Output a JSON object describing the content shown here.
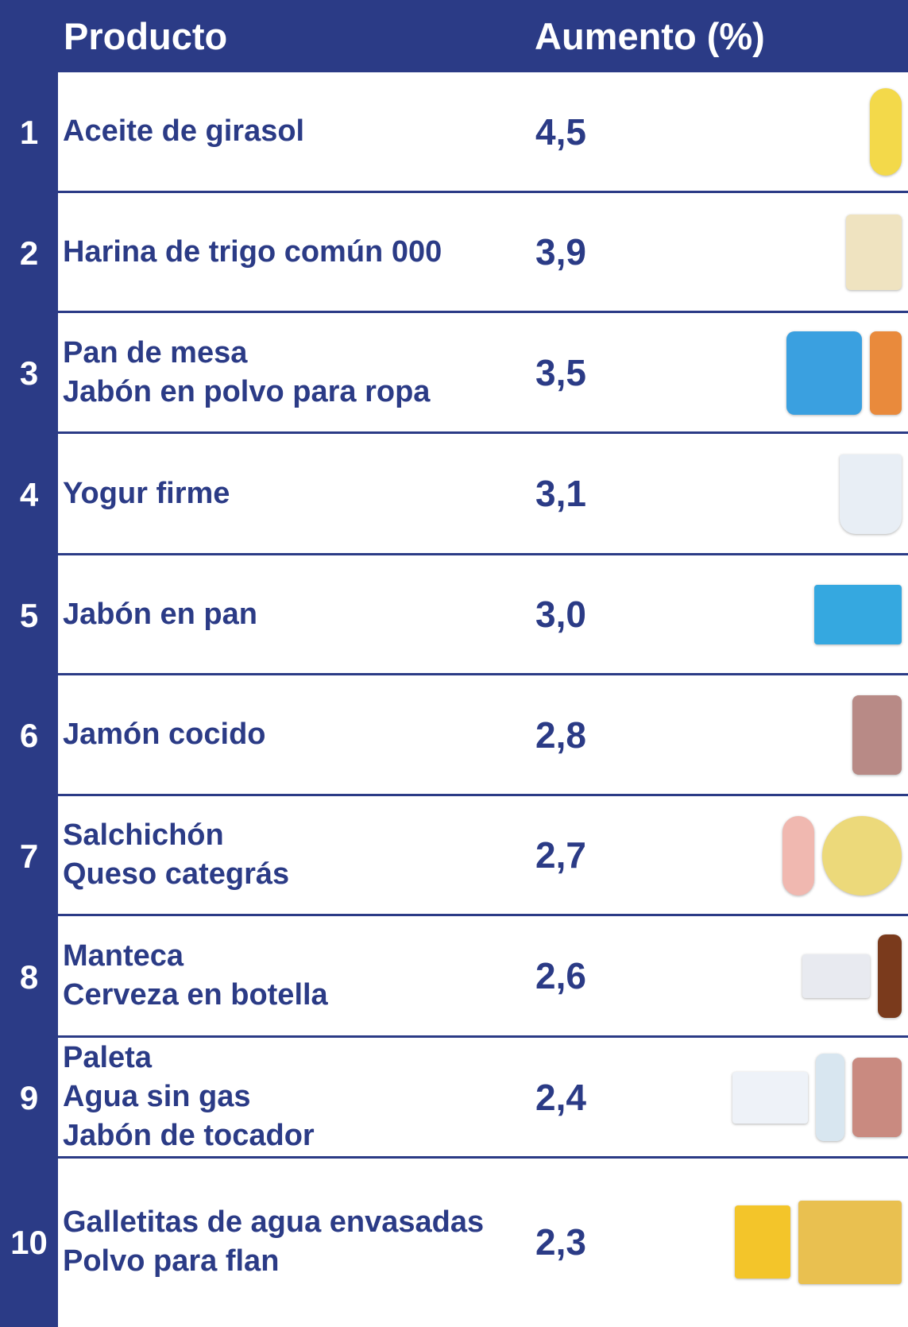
{
  "header": {
    "product": "Producto",
    "increase": "Aumento (%)"
  },
  "rows": [
    {
      "rank": "1",
      "names": [
        "Aceite de girasol"
      ],
      "value": "4,5",
      "images": [
        "oil-bottle"
      ]
    },
    {
      "rank": "2",
      "names": [
        "Harina de trigo común 000"
      ],
      "value": "3,9",
      "images": [
        "flour-bag"
      ]
    },
    {
      "rank": "3",
      "names": [
        "Pan de mesa",
        "Jabón en polvo para ropa"
      ],
      "value": "3,5",
      "images": [
        "detergent-bag",
        "bread-bag"
      ]
    },
    {
      "rank": "4",
      "names": [
        "Yogur firme"
      ],
      "value": "3,1",
      "images": [
        "yogurt-cup"
      ]
    },
    {
      "rank": "5",
      "names": [
        "Jabón en pan"
      ],
      "value": "3,0",
      "images": [
        "soap-box"
      ]
    },
    {
      "rank": "6",
      "names": [
        "Jamón cocido"
      ],
      "value": "2,8",
      "images": [
        "ham"
      ]
    },
    {
      "rank": "7",
      "names": [
        "Salchichón",
        "Queso categrás"
      ],
      "value": "2,7",
      "images": [
        "salami",
        "cheese-wheel"
      ]
    },
    {
      "rank": "8",
      "names": [
        "Manteca",
        "Cerveza en botella"
      ],
      "value": "2,6",
      "images": [
        "butter",
        "beer-bottle"
      ]
    },
    {
      "rank": "9",
      "names": [
        "Paleta",
        "Agua sin gas",
        "Jabón de tocador"
      ],
      "value": "2,4",
      "images": [
        "bar-soap",
        "water-bottle",
        "paleta"
      ]
    },
    {
      "rank": "10",
      "names": [
        "Galletitas de agua envasadas",
        "Polvo para flan"
      ],
      "value": "2,3",
      "images": [
        "flan-box",
        "crackers"
      ]
    }
  ]
}
